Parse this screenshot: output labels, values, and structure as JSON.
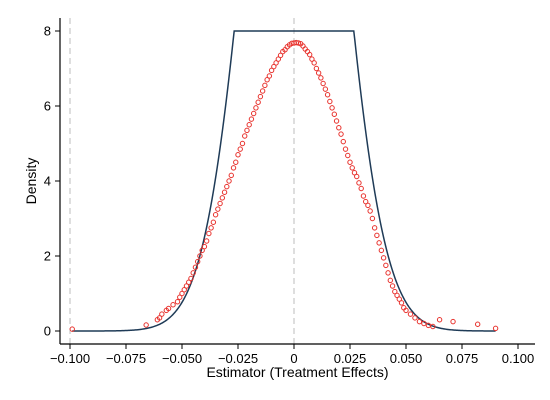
{
  "chart_data": {
    "type": "scatter",
    "title": "",
    "xlabel": "Estimator (Treatment Effects)",
    "ylabel": "Density",
    "xlim": [
      -0.1,
      0.1
    ],
    "ylim": [
      0,
      8
    ],
    "x_ticks": [
      -0.1,
      -0.075,
      -0.05,
      -0.025,
      0,
      0.025,
      0.05,
      0.075,
      0.1
    ],
    "x_tick_labels": [
      "−0.100",
      "−0.075",
      "−0.050",
      "−0.025",
      "0",
      "0.025",
      "0.050",
      "0.075",
      "0.100"
    ],
    "y_ticks": [
      0,
      2,
      4,
      6,
      8
    ],
    "y_tick_labels": [
      "0",
      "2",
      "4",
      "6",
      "8"
    ],
    "grid": false,
    "reference_lines_x": [
      -0.1,
      0
    ],
    "series": [
      {
        "kind": "scatter-hollow",
        "color": "#e8322d",
        "points": [
          [
            -0.099,
            0.05
          ],
          [
            -0.066,
            0.16
          ],
          [
            -0.061,
            0.3
          ],
          [
            -0.06,
            0.35
          ],
          [
            -0.059,
            0.45
          ],
          [
            -0.057,
            0.55
          ],
          [
            -0.056,
            0.6
          ],
          [
            -0.054,
            0.7
          ],
          [
            -0.052,
            0.78
          ],
          [
            -0.051,
            0.9
          ],
          [
            -0.05,
            1.0
          ],
          [
            -0.049,
            1.1
          ],
          [
            -0.048,
            1.2
          ],
          [
            -0.047,
            1.3
          ],
          [
            -0.046,
            1.4
          ],
          [
            -0.045,
            1.55
          ],
          [
            -0.044,
            1.7
          ],
          [
            -0.043,
            1.85
          ],
          [
            -0.042,
            2.0
          ],
          [
            -0.041,
            2.15
          ],
          [
            -0.04,
            2.25
          ],
          [
            -0.039,
            2.4
          ],
          [
            -0.038,
            2.6
          ],
          [
            -0.037,
            2.75
          ],
          [
            -0.036,
            2.9
          ],
          [
            -0.035,
            3.1
          ],
          [
            -0.034,
            3.25
          ],
          [
            -0.033,
            3.4
          ],
          [
            -0.032,
            3.55
          ],
          [
            -0.031,
            3.7
          ],
          [
            -0.03,
            3.85
          ],
          [
            -0.029,
            4.0
          ],
          [
            -0.028,
            4.15
          ],
          [
            -0.027,
            4.35
          ],
          [
            -0.026,
            4.5
          ],
          [
            -0.025,
            4.7
          ],
          [
            -0.024,
            4.85
          ],
          [
            -0.023,
            5.0
          ],
          [
            -0.022,
            5.2
          ],
          [
            -0.021,
            5.35
          ],
          [
            -0.02,
            5.5
          ],
          [
            -0.019,
            5.65
          ],
          [
            -0.018,
            5.8
          ],
          [
            -0.017,
            5.95
          ],
          [
            -0.016,
            6.1
          ],
          [
            -0.015,
            6.25
          ],
          [
            -0.014,
            6.4
          ],
          [
            -0.013,
            6.55
          ],
          [
            -0.012,
            6.7
          ],
          [
            -0.011,
            6.8
          ],
          [
            -0.01,
            6.95
          ],
          [
            -0.009,
            7.05
          ],
          [
            -0.008,
            7.15
          ],
          [
            -0.007,
            7.25
          ],
          [
            -0.006,
            7.35
          ],
          [
            -0.005,
            7.45
          ],
          [
            -0.004,
            7.5
          ],
          [
            -0.003,
            7.58
          ],
          [
            -0.002,
            7.63
          ],
          [
            -0.001,
            7.67
          ],
          [
            0.0,
            7.68
          ],
          [
            0.001,
            7.69
          ],
          [
            0.002,
            7.68
          ],
          [
            0.003,
            7.66
          ],
          [
            0.004,
            7.6
          ],
          [
            0.005,
            7.52
          ],
          [
            0.006,
            7.45
          ],
          [
            0.007,
            7.37
          ],
          [
            0.008,
            7.25
          ],
          [
            0.009,
            7.15
          ],
          [
            0.01,
            7.0
          ],
          [
            0.011,
            6.88
          ],
          [
            0.012,
            6.75
          ],
          [
            0.013,
            6.6
          ],
          [
            0.014,
            6.45
          ],
          [
            0.015,
            6.3
          ],
          [
            0.016,
            6.12
          ],
          [
            0.017,
            5.95
          ],
          [
            0.018,
            5.78
          ],
          [
            0.019,
            5.6
          ],
          [
            0.02,
            5.42
          ],
          [
            0.021,
            5.25
          ],
          [
            0.022,
            5.05
          ],
          [
            0.023,
            4.85
          ],
          [
            0.024,
            4.68
          ],
          [
            0.025,
            4.5
          ],
          [
            0.026,
            4.35
          ],
          [
            0.027,
            4.22
          ],
          [
            0.028,
            4.12
          ],
          [
            0.029,
            3.95
          ],
          [
            0.03,
            3.8
          ],
          [
            0.031,
            3.6
          ],
          [
            0.032,
            3.45
          ],
          [
            0.033,
            3.35
          ],
          [
            0.034,
            3.2
          ],
          [
            0.035,
            3.0
          ],
          [
            0.036,
            2.75
          ],
          [
            0.037,
            2.55
          ],
          [
            0.038,
            2.35
          ],
          [
            0.039,
            2.15
          ],
          [
            0.04,
            1.95
          ],
          [
            0.041,
            1.75
          ],
          [
            0.042,
            1.55
          ],
          [
            0.043,
            1.35
          ],
          [
            0.044,
            1.2
          ],
          [
            0.045,
            1.05
          ],
          [
            0.046,
            0.95
          ],
          [
            0.047,
            0.85
          ],
          [
            0.048,
            0.75
          ],
          [
            0.049,
            0.62
          ],
          [
            0.05,
            0.55
          ],
          [
            0.052,
            0.45
          ],
          [
            0.054,
            0.35
          ],
          [
            0.056,
            0.25
          ],
          [
            0.058,
            0.2
          ],
          [
            0.06,
            0.15
          ],
          [
            0.062,
            0.12
          ],
          [
            0.065,
            0.3
          ],
          [
            0.071,
            0.25
          ],
          [
            0.082,
            0.18
          ],
          [
            0.09,
            0.07
          ]
        ]
      },
      {
        "kind": "normal-density-curve",
        "color": "#1f3b57",
        "mean": 0,
        "sd": 0.0195
      }
    ]
  }
}
